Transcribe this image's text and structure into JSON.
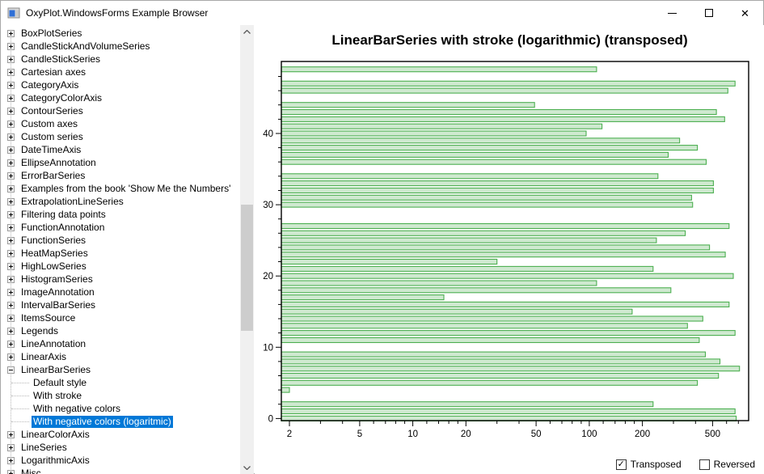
{
  "window": {
    "title": "OxyPlot.WindowsForms Example Browser",
    "buttons": {
      "minimize": "minimize",
      "maximize": "maximize",
      "close": "close"
    }
  },
  "tree": {
    "items": [
      {
        "label": "BoxPlotSeries",
        "level": 0,
        "expander": "plus"
      },
      {
        "label": "CandleStickAndVolumeSeries",
        "level": 0,
        "expander": "plus"
      },
      {
        "label": "CandleStickSeries",
        "level": 0,
        "expander": "plus"
      },
      {
        "label": "Cartesian axes",
        "level": 0,
        "expander": "plus"
      },
      {
        "label": "CategoryAxis",
        "level": 0,
        "expander": "plus"
      },
      {
        "label": "CategoryColorAxis",
        "level": 0,
        "expander": "plus"
      },
      {
        "label": "ContourSeries",
        "level": 0,
        "expander": "plus"
      },
      {
        "label": "Custom axes",
        "level": 0,
        "expander": "plus"
      },
      {
        "label": "Custom series",
        "level": 0,
        "expander": "plus"
      },
      {
        "label": "DateTimeAxis",
        "level": 0,
        "expander": "plus"
      },
      {
        "label": "EllipseAnnotation",
        "level": 0,
        "expander": "plus"
      },
      {
        "label": "ErrorBarSeries",
        "level": 0,
        "expander": "plus"
      },
      {
        "label": "Examples from the book 'Show Me the Numbers'",
        "level": 0,
        "expander": "plus"
      },
      {
        "label": "ExtrapolationLineSeries",
        "level": 0,
        "expander": "plus"
      },
      {
        "label": "Filtering data points",
        "level": 0,
        "expander": "plus"
      },
      {
        "label": "FunctionAnnotation",
        "level": 0,
        "expander": "plus"
      },
      {
        "label": "FunctionSeries",
        "level": 0,
        "expander": "plus"
      },
      {
        "label": "HeatMapSeries",
        "level": 0,
        "expander": "plus"
      },
      {
        "label": "HighLowSeries",
        "level": 0,
        "expander": "plus"
      },
      {
        "label": "HistogramSeries",
        "level": 0,
        "expander": "plus"
      },
      {
        "label": "ImageAnnotation",
        "level": 0,
        "expander": "plus"
      },
      {
        "label": "IntervalBarSeries",
        "level": 0,
        "expander": "plus"
      },
      {
        "label": "ItemsSource",
        "level": 0,
        "expander": "plus"
      },
      {
        "label": "Legends",
        "level": 0,
        "expander": "plus"
      },
      {
        "label": "LineAnnotation",
        "level": 0,
        "expander": "plus"
      },
      {
        "label": "LinearAxis",
        "level": 0,
        "expander": "plus"
      },
      {
        "label": "LinearBarSeries",
        "level": 0,
        "expander": "minus"
      },
      {
        "label": "Default style",
        "level": 1,
        "expander": "none"
      },
      {
        "label": "With stroke",
        "level": 1,
        "expander": "none"
      },
      {
        "label": "With negative colors",
        "level": 1,
        "expander": "none"
      },
      {
        "label": "With negative colors (logaritmic)",
        "level": 1,
        "expander": "none",
        "selected": true
      },
      {
        "label": "LinearColorAxis",
        "level": 0,
        "expander": "plus"
      },
      {
        "label": "LineSeries",
        "level": 0,
        "expander": "plus"
      },
      {
        "label": "LogarithmicAxis",
        "level": 0,
        "expander": "plus"
      },
      {
        "label": "Misc",
        "level": 0,
        "expander": "plus"
      }
    ]
  },
  "chart_data": {
    "type": "bar",
    "orientation": "horizontal",
    "title": "LinearBarSeries with stroke (logarithmic) (transposed)",
    "x_axis": {
      "type": "logarithmic",
      "min": 1.8,
      "max": 800,
      "major_ticks": [
        2,
        5,
        10,
        20,
        50,
        100,
        200,
        500
      ],
      "minor_ticks": [
        3,
        4,
        6,
        7,
        8,
        9,
        12,
        14,
        16,
        18,
        30,
        40,
        60,
        70,
        80,
        90,
        120,
        140,
        160,
        180,
        300,
        400,
        600,
        700
      ]
    },
    "y_axis": {
      "type": "linear",
      "min": -0.3,
      "max": 50.1,
      "major_ticks": [
        0,
        10,
        20,
        30,
        40
      ],
      "minor_tick_step": 2
    },
    "categories": [
      0,
      1,
      2,
      3,
      4,
      5,
      6,
      7,
      8,
      9,
      10,
      11,
      12,
      13,
      14,
      15,
      16,
      17,
      18,
      19,
      20,
      21,
      22,
      23,
      24,
      25,
      26,
      27,
      28,
      29,
      30,
      31,
      32,
      33,
      34,
      35,
      36,
      37,
      38,
      39,
      40,
      41,
      42,
      43,
      44,
      45,
      46,
      47,
      48,
      49
    ],
    "values": [
      680,
      670,
      230,
      null,
      2,
      410,
      540,
      710,
      550,
      455,
      null,
      420,
      670,
      360,
      440,
      175,
      620,
      15,
      290,
      110,
      655,
      230,
      30,
      590,
      480,
      240,
      350,
      620,
      null,
      null,
      385,
      380,
      505,
      505,
      245,
      null,
      460,
      280,
      410,
      325,
      96,
      118,
      585,
      525,
      49,
      null,
      610,
      670,
      null,
      110
    ],
    "bar_fill": "#cfe9d0",
    "bar_stroke": "#4caf50",
    "frame_color": "#000000",
    "grid": false,
    "legend": "none"
  },
  "controls": {
    "transposed": {
      "label": "Transposed",
      "checked": true
    },
    "reversed": {
      "label": "Reversed",
      "checked": false
    }
  },
  "colors": {
    "selection": "#0078d7",
    "scroll_track": "#f0f0f0",
    "scroll_thumb": "#cdcdcd"
  }
}
